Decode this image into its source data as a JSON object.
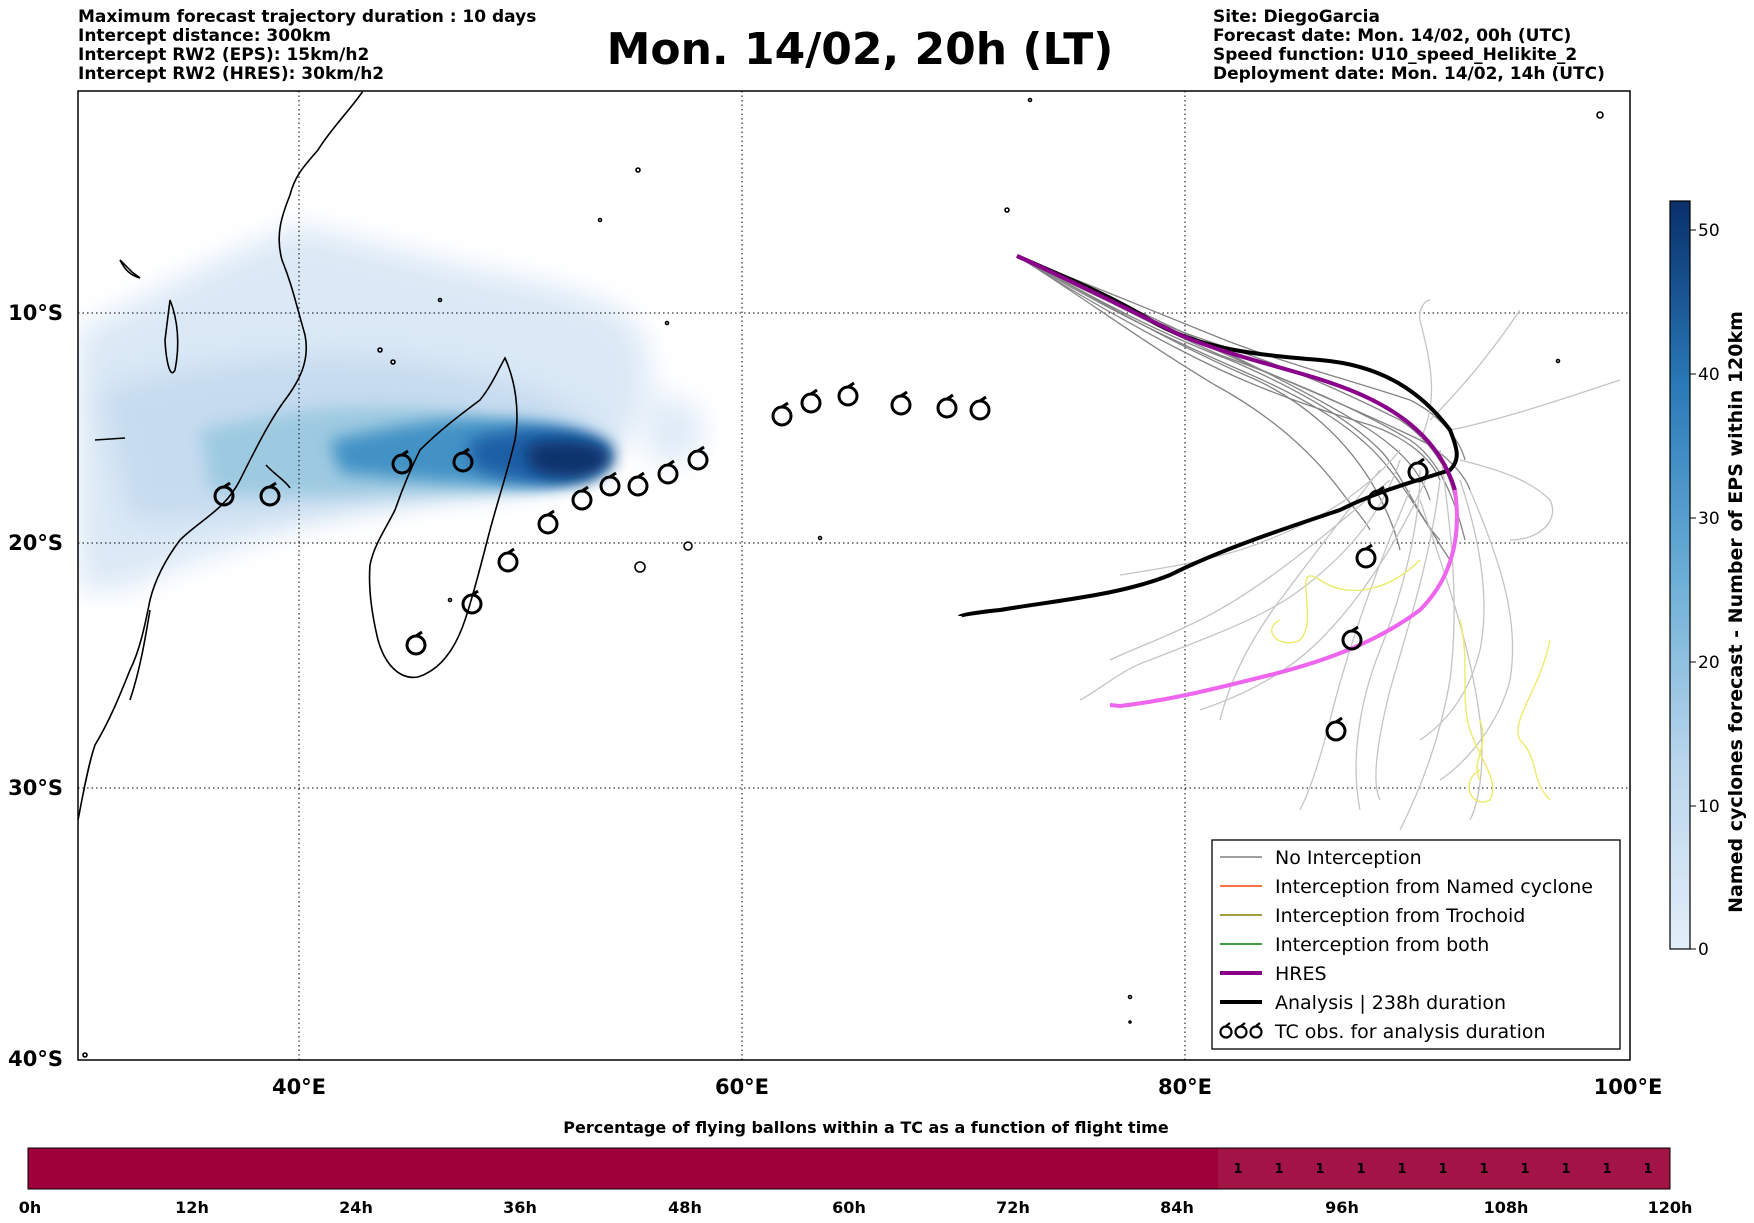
{
  "header": {
    "left_lines": [
      "Maximum forecast trajectory duration : 10 days",
      "Intercept distance: 300km",
      "Intercept RW2 (EPS):  15km/h2",
      "Intercept RW2 (HRES): 30km/h2"
    ],
    "title": "Mon. 14/02, 20h (LT)",
    "right_lines": [
      "Site: DiegoGarcia",
      "Forecast date: Mon. 14/02, 00h (UTC)",
      "Speed function: U10_speed_Helikite_2",
      "Deployment date: Mon. 14/02, 14h (UTC)"
    ]
  },
  "map": {
    "x_ticks": [
      "40°E",
      "60°E",
      "80°E",
      "100°E"
    ],
    "y_ticks": [
      "10°S",
      "20°S",
      "30°S",
      "40°S"
    ],
    "legend": [
      {
        "label": "No Interception",
        "color": "#808080",
        "width": 1.5
      },
      {
        "label": "Interception from Named cyclone",
        "color": "#ff4500",
        "width": 1.5
      },
      {
        "label": "Interception from Trochoid",
        "color": "#808000",
        "width": 1.5
      },
      {
        "label": "Interception from both",
        "color": "#008000",
        "width": 1.5
      },
      {
        "label": "HRES",
        "color": "#8b008b",
        "width": 4
      },
      {
        "label": "Analysis | 238h duration",
        "color": "#000000",
        "width": 4
      },
      {
        "label": "TC obs. for analysis duration",
        "color": "#000000",
        "icon": "cyclone-symbol-icon"
      }
    ],
    "hres_color": "#8b008b",
    "hres_tail_color": "#ee66ee",
    "analysis_color": "#000000"
  },
  "colorbar": {
    "label": "Named cyclones forecast - Number of EPS within 120km",
    "ticks": [
      "0",
      "10",
      "20",
      "30",
      "40",
      "50"
    ],
    "color_low": "#e3eef9",
    "color_high": "#08306b"
  },
  "flight_bar": {
    "title": "Percentage of flying ballons within a TC as a function of flight time",
    "ticks": [
      "0h",
      "12h",
      "24h",
      "36h",
      "48h",
      "60h",
      "72h",
      "84h",
      "96h",
      "108h",
      "120h"
    ],
    "cell_values": [
      "1",
      "1",
      "1",
      "1",
      "1",
      "1",
      "1",
      "1",
      "1",
      "1",
      "1"
    ],
    "color_main": "#a0003a",
    "color_cells": "#a31446"
  }
}
